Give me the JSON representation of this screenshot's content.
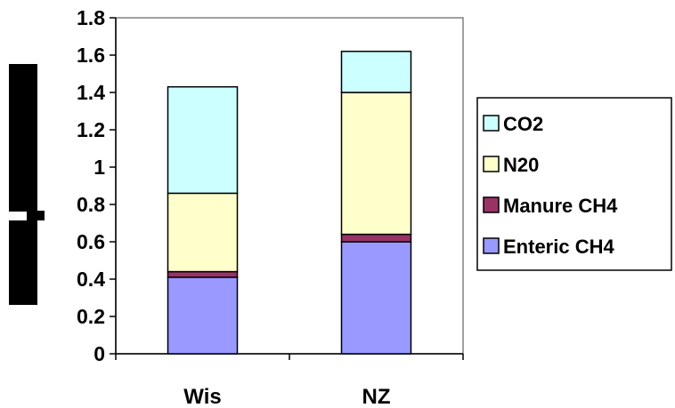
{
  "chart_data": {
    "type": "bar",
    "stacked": true,
    "title": "",
    "xlabel": "",
    "ylabel": "",
    "categories": [
      "Wis",
      "NZ"
    ],
    "ylim": [
      0,
      1.8
    ],
    "y_ticks": [
      "0",
      "0.2",
      "0.4",
      "0.6",
      "0.8",
      "1",
      "1.2",
      "1.4",
      "1.6",
      "1.8"
    ],
    "grid": false,
    "legend_position": "right",
    "series": [
      {
        "name": "Enteric CH4",
        "color": "#9999ff",
        "values": [
          0.41,
          0.6
        ]
      },
      {
        "name": "Manure CH4",
        "color": "#993366",
        "values": [
          0.03,
          0.04
        ]
      },
      {
        "name": "N20",
        "color": "#ffffcc",
        "values": [
          0.42,
          0.76
        ]
      },
      {
        "name": "CO2",
        "color": "#ccffff",
        "values": [
          0.57,
          0.22
        ]
      }
    ],
    "legend_order": [
      "CO2",
      "N20",
      "Manure CH4",
      "Enteric CH4"
    ]
  }
}
